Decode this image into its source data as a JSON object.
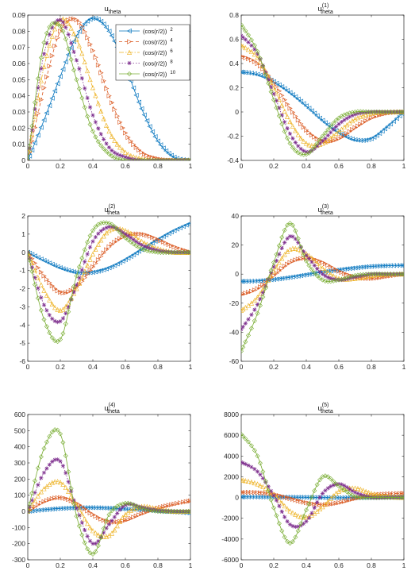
{
  "colors": {
    "blue": "#0072bd",
    "orange": "#d95319",
    "yellow": "#edb120",
    "purple": "#7e2f8e",
    "green": "#77ac30"
  },
  "legend": {
    "entries": [
      {
        "base": "(cos(r/2))",
        "exp": "2",
        "marker": "triangle-left",
        "color": "#0072bd",
        "line": "solid"
      },
      {
        "base": "(cos(r/2))",
        "exp": "4",
        "marker": "triangle-right",
        "color": "#d95319",
        "line": "dashed"
      },
      {
        "base": "(cos(r/2))",
        "exp": "6",
        "marker": "triangle-up",
        "color": "#edb120",
        "line": "dashdot"
      },
      {
        "base": "(cos(r/2))",
        "exp": "8",
        "marker": "asterisk",
        "color": "#7e2f8e",
        "line": "dotted"
      },
      {
        "base": "(cos(r/2))",
        "exp": "10",
        "marker": "diamond",
        "color": "#77ac30",
        "line": "solid"
      }
    ]
  },
  "chart_data": [
    {
      "type": "line",
      "title_main": "u",
      "title_sup": "",
      "title_sub": "theta",
      "xlim": [
        0,
        1
      ],
      "ylim": [
        0,
        0.09
      ],
      "xticks": [
        "0",
        "0.2",
        "0.4",
        "0.6",
        "0.8",
        "1"
      ],
      "yticks": [
        "0",
        "0.01",
        "0.02",
        "0.03",
        "0.04",
        "0.05",
        "0.06",
        "0.07",
        "0.08",
        "0.09"
      ],
      "legend_position": "top-right",
      "series": [
        {
          "name": "(cos(r/2))^2",
          "x": [
            0,
            0.1,
            0.2,
            0.3,
            0.4,
            0.5,
            0.6,
            0.7,
            0.8,
            0.9,
            1.0
          ],
          "y": [
            0,
            0.025,
            0.052,
            0.077,
            0.088,
            0.08,
            0.058,
            0.032,
            0.012,
            0.002,
            0
          ]
        },
        {
          "name": "(cos(r/2))^4",
          "x": [
            0,
            0.1,
            0.2,
            0.3,
            0.4,
            0.5,
            0.6,
            0.7,
            0.8,
            0.9,
            1.0
          ],
          "y": [
            0,
            0.045,
            0.08,
            0.087,
            0.068,
            0.04,
            0.017,
            0.005,
            0.001,
            0,
            0
          ]
        },
        {
          "name": "(cos(r/2))^6",
          "x": [
            0,
            0.1,
            0.2,
            0.3,
            0.4,
            0.5,
            0.6,
            0.7,
            0.8,
            0.9,
            1.0
          ],
          "y": [
            0,
            0.058,
            0.087,
            0.075,
            0.045,
            0.018,
            0.005,
            0.001,
            0,
            0,
            0
          ]
        },
        {
          "name": "(cos(r/2))^8",
          "x": [
            0,
            0.1,
            0.2,
            0.3,
            0.4,
            0.5,
            0.6,
            0.7,
            0.8,
            0.9,
            1.0
          ],
          "y": [
            0,
            0.066,
            0.087,
            0.062,
            0.028,
            0.008,
            0.002,
            0,
            0,
            0,
            0
          ]
        },
        {
          "name": "(cos(r/2))^10",
          "x": [
            0,
            0.1,
            0.2,
            0.3,
            0.4,
            0.5,
            0.6,
            0.7,
            0.8,
            0.9,
            1.0
          ],
          "y": [
            0,
            0.073,
            0.083,
            0.05,
            0.018,
            0.004,
            0,
            0,
            0,
            0,
            0
          ]
        }
      ]
    },
    {
      "type": "line",
      "title_main": "u",
      "title_sup": "(1)",
      "title_sub": "theta",
      "xlim": [
        0,
        1
      ],
      "ylim": [
        -0.4,
        0.8
      ],
      "xticks": [
        "0",
        "0.2",
        "0.4",
        "0.6",
        "0.8",
        "1"
      ],
      "yticks": [
        "-0.4",
        "-0.2",
        "0",
        "0.2",
        "0.4",
        "0.6",
        "0.8"
      ],
      "series": [
        {
          "name": "(cos(r/2))^2",
          "x": [
            0,
            0.1,
            0.2,
            0.3,
            0.4,
            0.5,
            0.6,
            0.7,
            0.8,
            0.9,
            1.0
          ],
          "y": [
            0.33,
            0.31,
            0.25,
            0.16,
            0.05,
            -0.07,
            -0.17,
            -0.23,
            -0.22,
            -0.12,
            0
          ]
        },
        {
          "name": "(cos(r/2))^4",
          "x": [
            0,
            0.1,
            0.2,
            0.3,
            0.4,
            0.5,
            0.6,
            0.7,
            0.8,
            0.9,
            1.0
          ],
          "y": [
            0.46,
            0.4,
            0.24,
            0.03,
            -0.15,
            -0.24,
            -0.22,
            -0.13,
            -0.05,
            -0.01,
            0
          ]
        },
        {
          "name": "(cos(r/2))^6",
          "x": [
            0,
            0.1,
            0.2,
            0.3,
            0.4,
            0.5,
            0.6,
            0.7,
            0.8,
            0.9,
            1.0
          ],
          "y": [
            0.55,
            0.45,
            0.2,
            -0.08,
            -0.26,
            -0.26,
            -0.16,
            -0.06,
            -0.01,
            0,
            0
          ]
        },
        {
          "name": "(cos(r/2))^8",
          "x": [
            0,
            0.1,
            0.2,
            0.3,
            0.4,
            0.5,
            0.6,
            0.7,
            0.8,
            0.9,
            1.0
          ],
          "y": [
            0.63,
            0.48,
            0.15,
            -0.18,
            -0.33,
            -0.24,
            -0.1,
            -0.02,
            0,
            0,
            0
          ]
        },
        {
          "name": "(cos(r/2))^10",
          "x": [
            0,
            0.1,
            0.2,
            0.3,
            0.4,
            0.5,
            0.6,
            0.7,
            0.8,
            0.9,
            1.0
          ],
          "y": [
            0.72,
            0.5,
            0.1,
            -0.26,
            -0.35,
            -0.2,
            -0.05,
            0,
            0,
            0,
            0
          ]
        }
      ]
    },
    {
      "type": "line",
      "title_main": "u",
      "title_sup": "(2)",
      "title_sub": "theta",
      "xlim": [
        0,
        1
      ],
      "ylim": [
        -6,
        2
      ],
      "xticks": [
        "0",
        "0.2",
        "0.4",
        "0.6",
        "0.8",
        "1"
      ],
      "yticks": [
        "-6",
        "-5",
        "-4",
        "-3",
        "-2",
        "-1",
        "0",
        "1",
        "2"
      ],
      "series": [
        {
          "name": "(cos(r/2))^2",
          "x": [
            0,
            0.1,
            0.2,
            0.3,
            0.4,
            0.5,
            0.6,
            0.7,
            0.8,
            0.9,
            1.0
          ],
          "y": [
            0,
            -0.45,
            -0.85,
            -1.1,
            -1.1,
            -0.85,
            -0.4,
            0.15,
            0.7,
            1.2,
            1.6
          ]
        },
        {
          "name": "(cos(r/2))^4",
          "x": [
            0,
            0.1,
            0.2,
            0.3,
            0.4,
            0.5,
            0.6,
            0.7,
            0.8,
            0.9,
            1.0
          ],
          "y": [
            0,
            -1.3,
            -2.2,
            -1.9,
            -0.8,
            0.3,
            0.9,
            1.0,
            0.7,
            0.3,
            0
          ]
        },
        {
          "name": "(cos(r/2))^6",
          "x": [
            0,
            0.1,
            0.2,
            0.3,
            0.4,
            0.5,
            0.6,
            0.7,
            0.8,
            0.9,
            1.0
          ],
          "y": [
            0,
            -2.1,
            -3.2,
            -2.0,
            -0.1,
            1.2,
            1.2,
            0.6,
            0.2,
            0,
            0
          ]
        },
        {
          "name": "(cos(r/2))^8",
          "x": [
            0,
            0.1,
            0.2,
            0.3,
            0.4,
            0.5,
            0.6,
            0.7,
            0.8,
            0.9,
            1.0
          ],
          "y": [
            0,
            -2.9,
            -3.8,
            -1.8,
            0.6,
            1.4,
            1.0,
            0.4,
            0.1,
            0,
            0
          ]
        },
        {
          "name": "(cos(r/2))^10",
          "x": [
            0,
            0.1,
            0.2,
            0.3,
            0.4,
            0.5,
            0.6,
            0.7,
            0.8,
            0.9,
            1.0
          ],
          "y": [
            0,
            -3.7,
            -4.8,
            -1.3,
            1.2,
            1.6,
            0.8,
            0.2,
            0,
            0,
            0
          ]
        }
      ]
    },
    {
      "type": "line",
      "title_main": "u",
      "title_sup": "(3)",
      "title_sub": "theta",
      "xlim": [
        0,
        1
      ],
      "ylim": [
        -60,
        40
      ],
      "xticks": [
        "0",
        "0.2",
        "0.4",
        "0.6",
        "0.8",
        "1"
      ],
      "yticks": [
        "-60",
        "-40",
        "-20",
        "0",
        "20",
        "40"
      ],
      "series": [
        {
          "name": "(cos(r/2))^2",
          "x": [
            0,
            0.1,
            0.2,
            0.3,
            0.4,
            0.5,
            0.6,
            0.7,
            0.8,
            0.9,
            1.0
          ],
          "y": [
            -5,
            -4.7,
            -3.7,
            -2.2,
            -0.4,
            1.4,
            3,
            4.3,
            5.3,
            5.8,
            6
          ]
        },
        {
          "name": "(cos(r/2))^4",
          "x": [
            0,
            0.1,
            0.2,
            0.3,
            0.4,
            0.5,
            0.6,
            0.7,
            0.8,
            0.9,
            1.0
          ],
          "y": [
            -14,
            -10,
            -1,
            8,
            11,
            8,
            2,
            -2,
            -3,
            -1.5,
            0
          ]
        },
        {
          "name": "(cos(r/2))^6",
          "x": [
            0,
            0.1,
            0.2,
            0.3,
            0.4,
            0.5,
            0.6,
            0.7,
            0.8,
            0.9,
            1.0
          ],
          "y": [
            -25,
            -16,
            2,
            17,
            14,
            4,
            -3,
            -3,
            -1,
            0,
            0
          ]
        },
        {
          "name": "(cos(r/2))^8",
          "x": [
            0,
            0.1,
            0.2,
            0.3,
            0.4,
            0.5,
            0.6,
            0.7,
            0.8,
            0.9,
            1.0
          ],
          "y": [
            -38,
            -21,
            5,
            26,
            13,
            0,
            -4,
            -2,
            0,
            0,
            0
          ]
        },
        {
          "name": "(cos(r/2))^10",
          "x": [
            0,
            0.1,
            0.2,
            0.3,
            0.4,
            0.5,
            0.6,
            0.7,
            0.8,
            0.9,
            1.0
          ],
          "y": [
            -53,
            -27,
            8,
            35,
            9,
            -4,
            -4,
            -1,
            0,
            0,
            0
          ]
        }
      ]
    },
    {
      "type": "line",
      "title_main": "u",
      "title_sup": "(4)",
      "title_sub": "theta",
      "xlim": [
        0,
        1
      ],
      "ylim": [
        -300,
        600
      ],
      "xticks": [
        "0",
        "0.2",
        "0.4",
        "0.6",
        "0.8",
        "1"
      ],
      "yticks": [
        "-300",
        "-200",
        "-100",
        "0",
        "100",
        "200",
        "300",
        "400",
        "500",
        "600"
      ],
      "series": [
        {
          "name": "(cos(r/2))^2",
          "x": [
            0,
            0.1,
            0.2,
            0.3,
            0.4,
            0.5,
            0.6,
            0.7,
            0.8,
            0.9,
            1.0
          ],
          "y": [
            0,
            10,
            18,
            22,
            23,
            20,
            15,
            10,
            3,
            -4,
            -10
          ]
        },
        {
          "name": "(cos(r/2))^4",
          "x": [
            0,
            0.1,
            0.2,
            0.3,
            0.4,
            0.5,
            0.6,
            0.7,
            0.8,
            0.9,
            1.0
          ],
          "y": [
            0,
            60,
            85,
            50,
            -20,
            -65,
            -55,
            -15,
            20,
            45,
            65
          ]
        },
        {
          "name": "(cos(r/2))^6",
          "x": [
            0,
            0.1,
            0.2,
            0.3,
            0.4,
            0.5,
            0.6,
            0.7,
            0.8,
            0.9,
            1.0
          ],
          "y": [
            0,
            140,
            180,
            40,
            -120,
            -150,
            -20,
            30,
            15,
            0,
            0
          ]
        },
        {
          "name": "(cos(r/2))^8",
          "x": [
            0,
            0.1,
            0.2,
            0.3,
            0.4,
            0.5,
            0.6,
            0.7,
            0.8,
            0.9,
            1.0
          ],
          "y": [
            0,
            240,
            310,
            20,
            -200,
            -80,
            40,
            25,
            5,
            0,
            0
          ]
        },
        {
          "name": "(cos(r/2))^10",
          "x": [
            0,
            0.1,
            0.2,
            0.3,
            0.4,
            0.5,
            0.6,
            0.7,
            0.8,
            0.9,
            1.0
          ],
          "y": [
            0,
            390,
            480,
            -30,
            -265,
            -20,
            50,
            20,
            0,
            0,
            0
          ]
        }
      ]
    },
    {
      "type": "line",
      "title_main": "u",
      "title_sup": "(5)",
      "title_sub": "theta",
      "xlim": [
        0,
        1
      ],
      "ylim": [
        -6000,
        8000
      ],
      "xticks": [
        "0",
        "0.2",
        "0.4",
        "0.6",
        "0.8",
        "1"
      ],
      "yticks": [
        "-6000",
        "-4000",
        "-2000",
        "0",
        "2000",
        "4000",
        "6000",
        "8000"
      ],
      "series": [
        {
          "name": "(cos(r/2))^2",
          "x": [
            0,
            0.1,
            0.2,
            0.3,
            0.4,
            0.5,
            0.6,
            0.7,
            0.8,
            0.9,
            1.0
          ],
          "y": [
            60,
            55,
            45,
            35,
            20,
            0,
            -20,
            -10,
            10,
            30,
            40
          ]
        },
        {
          "name": "(cos(r/2))^4",
          "x": [
            0,
            0.1,
            0.2,
            0.3,
            0.4,
            0.5,
            0.6,
            0.7,
            0.8,
            0.9,
            1.0
          ],
          "y": [
            500,
            480,
            300,
            -100,
            -500,
            -700,
            -500,
            -100,
            200,
            350,
            400
          ]
        },
        {
          "name": "(cos(r/2))^6",
          "x": [
            0,
            0.1,
            0.2,
            0.3,
            0.4,
            0.5,
            0.6,
            0.7,
            0.8,
            0.9,
            1.0
          ],
          "y": [
            1700,
            1300,
            300,
            -1300,
            -1900,
            -900,
            600,
            900,
            400,
            100,
            0
          ]
        },
        {
          "name": "(cos(r/2))^8",
          "x": [
            0,
            0.1,
            0.2,
            0.3,
            0.4,
            0.5,
            0.6,
            0.7,
            0.8,
            0.9,
            1.0
          ],
          "y": [
            3400,
            2500,
            200,
            -2600,
            -2300,
            400,
            1300,
            500,
            0,
            0,
            0
          ]
        },
        {
          "name": "(cos(r/2))^10",
          "x": [
            0,
            0.1,
            0.2,
            0.3,
            0.4,
            0.5,
            0.6,
            0.7,
            0.8,
            0.9,
            1.0
          ],
          "y": [
            6100,
            4000,
            -1000,
            -4400,
            -1200,
            2000,
            1100,
            100,
            0,
            0,
            0
          ]
        }
      ]
    }
  ]
}
